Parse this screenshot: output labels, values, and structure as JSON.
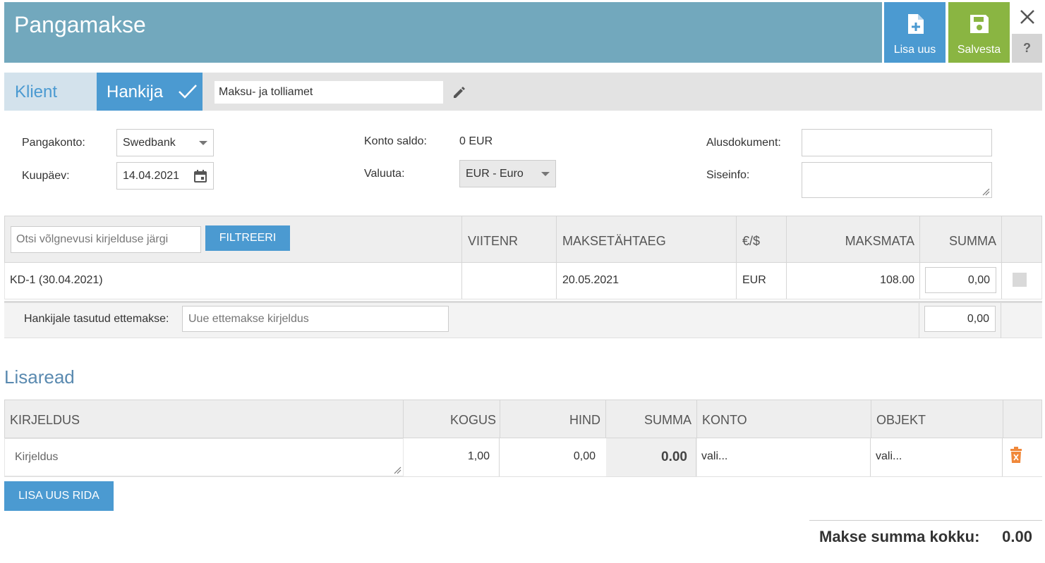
{
  "header": {
    "title": "Pangamakse",
    "add_new_label": "Lisa uus",
    "save_label": "Salvesta",
    "help_label": "?"
  },
  "typebar": {
    "client_tab": "Klient",
    "supplier_tab": "Hankija",
    "partner_value": "Maksu- ja tolliamet"
  },
  "form": {
    "bank_account_label": "Pangakonto:",
    "bank_account_value": "Swedbank",
    "date_label": "Kuupäev:",
    "date_value": "14.04.2021",
    "balance_label": "Konto saldo:",
    "balance_value": "0 EUR",
    "currency_label": "Valuuta:",
    "currency_value": "EUR - Euro",
    "base_doc_label": "Alusdokument:",
    "base_doc_value": "",
    "internal_info_label": "Siseinfo:",
    "internal_info_value": ""
  },
  "debts_table": {
    "search_placeholder": "Otsi võlgnevusi kirjelduse järgi",
    "filter_label": "FILTREERI",
    "columns": [
      "VIITENR",
      "MAKSETÄHTAEG",
      "€/$",
      "MAKSMATA",
      "SUMMA"
    ],
    "rows": [
      {
        "description": "KD-1 (30.04.2021)",
        "ref": "",
        "due": "20.05.2021",
        "currency": "EUR",
        "unpaid": "108.00",
        "sum": "0,00"
      }
    ],
    "advance_label": "Hankijale tasutud ettemakse:",
    "advance_placeholder": "Uue ettemakse kirjeldus",
    "advance_sum": "0,00"
  },
  "extra_rows": {
    "title": "Lisaread",
    "columns": [
      "KIRJELDUS",
      "KOGUS",
      "HIND",
      "SUMMA",
      "KONTO",
      "OBJEKT"
    ],
    "row": {
      "description_placeholder": "Kirjeldus",
      "quantity": "1,00",
      "price": "0,00",
      "sum": "0.00",
      "account": "vali...",
      "object": "vali..."
    },
    "add_row_label": "LISA UUS RIDA"
  },
  "total": {
    "label": "Makse summa kokku:",
    "value": "0.00"
  },
  "colors": {
    "header_bg": "#72a8bd",
    "primary": "#4b9ad1",
    "save": "#8ab542"
  }
}
